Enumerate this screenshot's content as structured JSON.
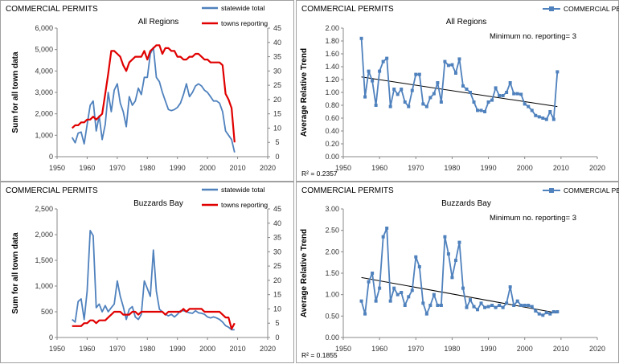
{
  "chart_data": [
    {
      "id": "p1",
      "type": "line",
      "title": "COMMERCIAL PERMITS",
      "subtitle": "All Regions",
      "ylabel": "Sum for all town data",
      "xlim": [
        1950,
        2020
      ],
      "xticks": [
        1950,
        1960,
        1970,
        1980,
        1990,
        2000,
        2010,
        2020
      ],
      "ylim": [
        0,
        6000
      ],
      "yticks": [
        0,
        1000,
        2000,
        3000,
        4000,
        5000,
        6000
      ],
      "ytick_labels": [
        "0",
        "1,000",
        "2,000",
        "3,000",
        "4,000",
        "5,000",
        "6,000"
      ],
      "y2lim": [
        0,
        45
      ],
      "y2ticks": [
        0,
        5,
        10,
        15,
        20,
        25,
        30,
        35,
        40,
        45
      ],
      "legend_position": "top-right",
      "series": [
        {
          "name": "statewide total",
          "axis": "left",
          "color": "#4f81bd",
          "x": [
            1955,
            1956,
            1957,
            1958,
            1959,
            1960,
            1961,
            1962,
            1963,
            1964,
            1965,
            1966,
            1967,
            1968,
            1969,
            1970,
            1971,
            1972,
            1973,
            1974,
            1975,
            1976,
            1977,
            1978,
            1979,
            1980,
            1981,
            1982,
            1983,
            1984,
            1985,
            1986,
            1987,
            1988,
            1989,
            1990,
            1991,
            1992,
            1993,
            1994,
            1995,
            1996,
            1997,
            1998,
            1999,
            2000,
            2001,
            2002,
            2003,
            2004,
            2005,
            2006,
            2007,
            2008,
            2009
          ],
          "y": [
            900,
            650,
            1100,
            1150,
            600,
            1500,
            2400,
            2600,
            1200,
            1900,
            800,
            1500,
            3000,
            2100,
            3100,
            3400,
            2500,
            2100,
            1400,
            2800,
            2400,
            2600,
            3200,
            2900,
            3700,
            3700,
            4800,
            5100,
            3700,
            3500,
            3000,
            2600,
            2200,
            2150,
            2200,
            2300,
            2500,
            2900,
            3400,
            2800,
            3000,
            3300,
            3400,
            3300,
            3100,
            3000,
            2800,
            2600,
            2600,
            2500,
            2100,
            1200,
            1000,
            800,
            200
          ]
        },
        {
          "name": "towns reporting",
          "axis": "right",
          "color": "#e00000",
          "x": [
            1955,
            1956,
            1957,
            1958,
            1959,
            1960,
            1961,
            1962,
            1963,
            1964,
            1965,
            1966,
            1967,
            1968,
            1969,
            1970,
            1971,
            1972,
            1973,
            1974,
            1975,
            1976,
            1977,
            1978,
            1979,
            1980,
            1981,
            1982,
            1983,
            1984,
            1985,
            1986,
            1987,
            1988,
            1989,
            1990,
            1991,
            1992,
            1993,
            1994,
            1995,
            1996,
            1997,
            1998,
            1999,
            2000,
            2001,
            2002,
            2003,
            2004,
            2005,
            2006,
            2007,
            2008,
            2009
          ],
          "y": [
            10,
            11,
            11,
            12,
            12,
            13,
            13,
            14,
            13,
            14,
            15,
            22,
            29,
            37,
            37,
            36,
            35,
            32,
            30,
            33,
            34,
            35,
            35,
            35,
            37,
            34,
            37,
            38,
            39,
            39,
            36,
            38,
            38,
            37,
            37,
            35,
            35,
            34,
            34,
            35,
            35,
            36,
            36,
            35,
            34,
            34,
            33,
            33,
            33,
            33,
            32,
            22,
            20,
            17,
            5
          ]
        }
      ]
    },
    {
      "id": "p2",
      "type": "line",
      "title": "COMMERCIAL PERMITS",
      "subtitle": "All Regions",
      "ylabel": "Average Relative Trend",
      "annotation": "Minimum no. reporting= 3",
      "r2": "R² = 0.2357",
      "xlim": [
        1950,
        2020
      ],
      "xticks": [
        1950,
        1960,
        1970,
        1980,
        1990,
        2000,
        2010,
        2020
      ],
      "ylim": [
        0,
        2
      ],
      "yticks": [
        0,
        0.2,
        0.4,
        0.6,
        0.8,
        1,
        1.2,
        1.4,
        1.6,
        1.8,
        2
      ],
      "ytick_labels": [
        "0.00",
        "0.20",
        "0.40",
        "0.60",
        "0.80",
        "1.00",
        "1.20",
        "1.40",
        "1.60",
        "1.80",
        "2.00"
      ],
      "legend_position": "top-right",
      "trendline": {
        "x": [
          1955,
          2009
        ],
        "y": [
          1.24,
          0.78
        ]
      },
      "series": [
        {
          "name": "COMMERCIAL PERMITS",
          "color": "#4f81bd",
          "x": [
            1955,
            1956,
            1957,
            1958,
            1959,
            1960,
            1961,
            1962,
            1963,
            1964,
            1965,
            1966,
            1967,
            1968,
            1969,
            1970,
            1971,
            1972,
            1973,
            1974,
            1975,
            1976,
            1977,
            1978,
            1979,
            1980,
            1981,
            1982,
            1983,
            1984,
            1985,
            1986,
            1987,
            1988,
            1989,
            1990,
            1991,
            1992,
            1993,
            1994,
            1995,
            1996,
            1997,
            1998,
            1999,
            2000,
            2001,
            2002,
            2003,
            2004,
            2005,
            2006,
            2007,
            2008,
            2009
          ],
          "y": [
            1.84,
            0.93,
            1.33,
            1.18,
            0.8,
            1.33,
            1.48,
            1.53,
            0.78,
            1.05,
            0.97,
            1.05,
            0.85,
            0.78,
            1.03,
            1.28,
            1.28,
            0.82,
            0.78,
            0.92,
            0.98,
            1.15,
            0.85,
            1.48,
            1.42,
            1.43,
            1.3,
            1.52,
            1.1,
            1.05,
            1.0,
            0.85,
            0.72,
            0.72,
            0.7,
            0.85,
            0.88,
            1.07,
            0.95,
            0.95,
            1.0,
            1.15,
            0.98,
            0.98,
            0.97,
            0.82,
            0.78,
            0.72,
            0.64,
            0.62,
            0.6,
            0.58,
            0.7,
            0.58,
            1.32
          ]
        }
      ]
    },
    {
      "id": "p3",
      "type": "line",
      "title": "COMMERCIAL PERMITS",
      "subtitle": "Buzzards Bay",
      "ylabel": "Sum for all town data",
      "xlim": [
        1950,
        2020
      ],
      "xticks": [
        1950,
        1960,
        1970,
        1980,
        1990,
        2000,
        2010,
        2020
      ],
      "ylim": [
        0,
        2500
      ],
      "yticks": [
        0,
        500,
        1000,
        1500,
        2000,
        2500
      ],
      "ytick_labels": [
        "0",
        "500",
        "1,000",
        "1,500",
        "2,000",
        "2,500"
      ],
      "y2lim": [
        0,
        45
      ],
      "y2ticks": [
        0,
        5,
        10,
        15,
        20,
        25,
        30,
        35,
        40,
        45
      ],
      "legend_position": "top-right",
      "series": [
        {
          "name": "statewide total",
          "axis": "left",
          "color": "#4f81bd",
          "x": [
            1955,
            1956,
            1957,
            1958,
            1959,
            1960,
            1961,
            1962,
            1963,
            1964,
            1965,
            1966,
            1967,
            1968,
            1969,
            1970,
            1971,
            1972,
            1973,
            1974,
            1975,
            1976,
            1977,
            1978,
            1979,
            1980,
            1981,
            1982,
            1983,
            1984,
            1985,
            1986,
            1987,
            1988,
            1989,
            1990,
            1991,
            1992,
            1993,
            1994,
            1995,
            1996,
            1997,
            1998,
            1999,
            2000,
            2001,
            2002,
            2003,
            2004,
            2005,
            2006,
            2007,
            2008,
            2009
          ],
          "y": [
            350,
            300,
            700,
            750,
            350,
            900,
            2080,
            1980,
            580,
            650,
            500,
            620,
            500,
            580,
            650,
            1100,
            800,
            600,
            350,
            550,
            600,
            400,
            350,
            450,
            1100,
            950,
            800,
            1700,
            900,
            550,
            500,
            450,
            420,
            450,
            400,
            450,
            520,
            520,
            500,
            480,
            470,
            520,
            480,
            470,
            450,
            400,
            380,
            400,
            380,
            350,
            300,
            230,
            200,
            150,
            150
          ]
        },
        {
          "name": "towns reporting",
          "axis": "right",
          "color": "#e00000",
          "x": [
            1955,
            1956,
            1957,
            1958,
            1959,
            1960,
            1961,
            1962,
            1963,
            1964,
            1965,
            1966,
            1967,
            1968,
            1969,
            1970,
            1971,
            1972,
            1973,
            1974,
            1975,
            1976,
            1977,
            1978,
            1979,
            1980,
            1981,
            1982,
            1983,
            1984,
            1985,
            1986,
            1987,
            1988,
            1989,
            1990,
            1991,
            1992,
            1993,
            1994,
            1995,
            1996,
            1997,
            1998,
            1999,
            2000,
            2001,
            2002,
            2003,
            2004,
            2005,
            2006,
            2007,
            2008,
            2009
          ],
          "y": [
            4,
            4,
            4,
            4,
            5,
            5,
            6,
            6,
            5,
            6,
            6,
            6,
            7,
            8,
            9,
            9,
            9,
            8,
            8,
            8,
            9,
            9,
            8,
            9,
            9,
            9,
            9,
            9,
            9,
            9,
            9,
            8,
            9,
            9,
            9,
            9,
            9,
            10,
            9,
            10,
            10,
            10,
            10,
            10,
            9,
            9,
            9,
            9,
            9,
            9,
            8,
            7,
            7,
            3,
            5
          ]
        }
      ]
    },
    {
      "id": "p4",
      "type": "line",
      "title": "COMMERCIAL PERMITS",
      "subtitle": "Buzzards Bay",
      "ylabel": "Average Relative Trend",
      "annotation": "Minimum no. reporting= 3",
      "r2": "R² = 0.1855",
      "xlim": [
        1950,
        2020
      ],
      "xticks": [
        1950,
        1960,
        1970,
        1980,
        1990,
        2000,
        2010,
        2020
      ],
      "ylim": [
        0,
        3
      ],
      "yticks": [
        0,
        0.5,
        1,
        1.5,
        2,
        2.5,
        3
      ],
      "ytick_labels": [
        "0.00",
        "0.50",
        "1.00",
        "1.50",
        "2.00",
        "2.50",
        "3.00"
      ],
      "legend_position": "top-right",
      "trendline": {
        "x": [
          1955,
          2009
        ],
        "y": [
          1.4,
          0.57
        ]
      },
      "series": [
        {
          "name": "COMMERCIAL PERMITS",
          "color": "#4f81bd",
          "x": [
            1955,
            1956,
            1957,
            1958,
            1959,
            1960,
            1961,
            1962,
            1963,
            1964,
            1965,
            1966,
            1967,
            1968,
            1969,
            1970,
            1971,
            1972,
            1973,
            1974,
            1975,
            1976,
            1977,
            1978,
            1979,
            1980,
            1981,
            1982,
            1983,
            1984,
            1985,
            1986,
            1987,
            1988,
            1989,
            1990,
            1991,
            1992,
            1993,
            1994,
            1995,
            1996,
            1997,
            1998,
            1999,
            2000,
            2001,
            2002,
            2003,
            2004,
            2005,
            2006,
            2007,
            2008,
            2009
          ],
          "y": [
            0.85,
            0.55,
            1.3,
            1.5,
            0.85,
            1.15,
            2.35,
            2.55,
            0.85,
            1.15,
            1.0,
            1.05,
            0.75,
            0.95,
            1.1,
            1.88,
            1.65,
            0.8,
            0.55,
            0.75,
            1.0,
            0.75,
            0.75,
            2.35,
            1.95,
            1.4,
            1.8,
            2.22,
            1.15,
            0.7,
            0.88,
            0.72,
            0.65,
            0.8,
            0.7,
            0.72,
            0.75,
            0.7,
            0.75,
            0.7,
            0.8,
            1.18,
            0.75,
            0.85,
            0.75,
            0.75,
            0.75,
            0.72,
            0.62,
            0.55,
            0.52,
            0.58,
            0.55,
            0.6,
            0.6
          ]
        }
      ]
    }
  ]
}
